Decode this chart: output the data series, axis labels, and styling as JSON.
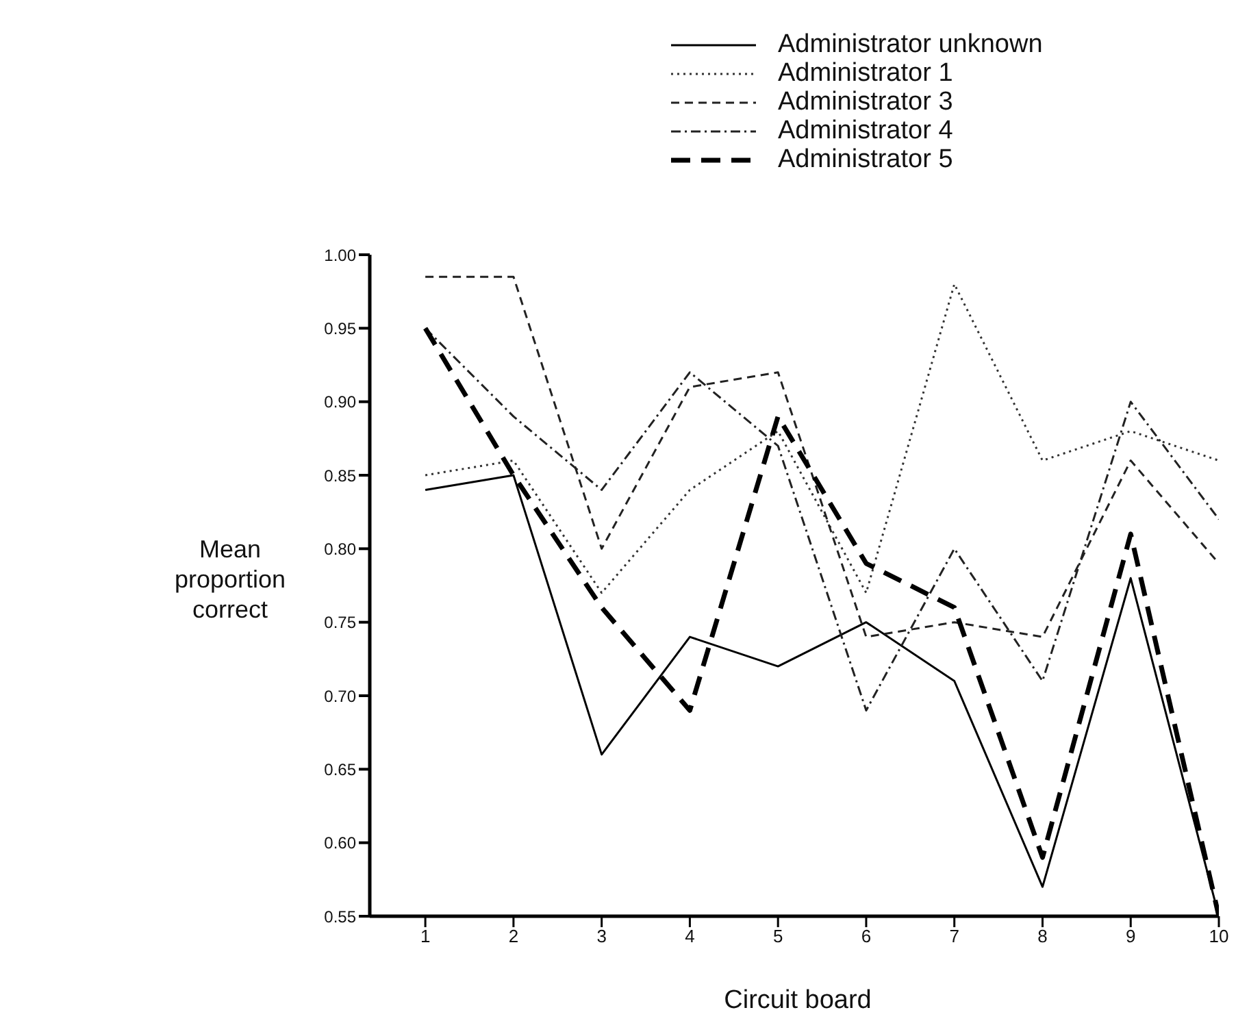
{
  "chart_data": {
    "type": "line",
    "xlabel": "Circuit board",
    "ylabel": "Mean proportion correct",
    "x": [
      1,
      2,
      3,
      4,
      5,
      6,
      7,
      8,
      9,
      10
    ],
    "xlim": [
      0.37,
      10
    ],
    "xticks": [
      1,
      2,
      3,
      4,
      5,
      6,
      7,
      8,
      9,
      10
    ],
    "ylim": [
      0.55,
      1.0
    ],
    "yticks": [
      0.55,
      {
        "value": 0.6,
        "label": "0.60"
      },
      0.65,
      {
        "value": 0.7,
        "label": "0.70"
      },
      0.75,
      {
        "value": 0.8,
        "label": "0.80"
      },
      0.85,
      {
        "value": 0.9,
        "label": "0.90"
      },
      0.95,
      {
        "value": 1.0,
        "label": "1.00"
      }
    ],
    "grid": false,
    "legend": "top",
    "marker": "none",
    "series": [
      {
        "name": "Administrator unknown",
        "color": "#000000",
        "line_style": "solid",
        "values": [
          0.84,
          0.85,
          0.66,
          0.74,
          0.72,
          0.75,
          0.71,
          0.57,
          0.78,
          0.55
        ]
      },
      {
        "name": "Administrator 1",
        "color": "#333333",
        "line_style": "dotted",
        "values": [
          0.85,
          0.86,
          0.77,
          0.84,
          0.88,
          0.77,
          0.98,
          0.86,
          0.88,
          0.86
        ]
      },
      {
        "name": "Administrator 3",
        "color": "#222222",
        "line_style": "dashed",
        "values": [
          0.985,
          0.985,
          0.8,
          0.91,
          0.92,
          0.74,
          0.75,
          0.74,
          0.86,
          0.79
        ]
      },
      {
        "name": "Administrator 4",
        "color": "#222222",
        "line_style": "dashdot",
        "values": [
          0.95,
          0.89,
          0.84,
          0.92,
          0.87,
          0.69,
          0.8,
          0.71,
          0.9,
          0.82
        ]
      },
      {
        "name": "Administrator 5",
        "color": "#000000",
        "line_style": "longdash",
        "values": [
          0.95,
          0.85,
          0.76,
          0.69,
          0.89,
          0.79,
          0.76,
          0.59,
          0.81,
          0.55
        ]
      }
    ]
  }
}
